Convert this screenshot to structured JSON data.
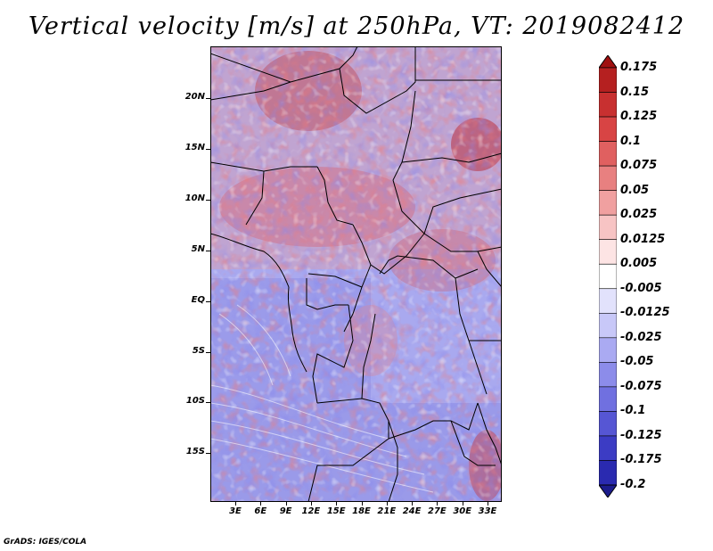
{
  "title": "Vertical velocity [m/s] at 250hPa, VT: 2019082412",
  "credit": "GrADS: IGES/COLA",
  "lat_labels": [
    "20N",
    "15N",
    "10N",
    "5N",
    "EQ",
    "5S",
    "10S",
    "15S"
  ],
  "lon_labels": [
    "3E",
    "6E",
    "9E",
    "12E",
    "15E",
    "18E",
    "21E",
    "24E",
    "27E",
    "30E",
    "33E"
  ],
  "colorbar": {
    "labels": [
      "0.175",
      "0.15",
      "0.125",
      "0.1",
      "0.075",
      "0.05",
      "0.025",
      "0.0125",
      "0.005",
      "-0.005",
      "-0.0125",
      "-0.025",
      "-0.05",
      "-0.075",
      "-0.1",
      "-0.125",
      "-0.175",
      "-0.2"
    ],
    "colors": [
      "#a01010",
      "#b52020",
      "#c83030",
      "#d84444",
      "#e06060",
      "#e88080",
      "#f0a0a0",
      "#f7c4c4",
      "#fde4e4",
      "#ffffff",
      "#e2e2fc",
      "#c8c8f8",
      "#aaaaf2",
      "#8c8cea",
      "#7070e0",
      "#5656d4",
      "#3c3cc4",
      "#2a2ab0",
      "#1c1c8c"
    ]
  },
  "region": {
    "lon_min": 0,
    "lon_max": 35,
    "lat_min": -20,
    "lat_max": 25
  }
}
